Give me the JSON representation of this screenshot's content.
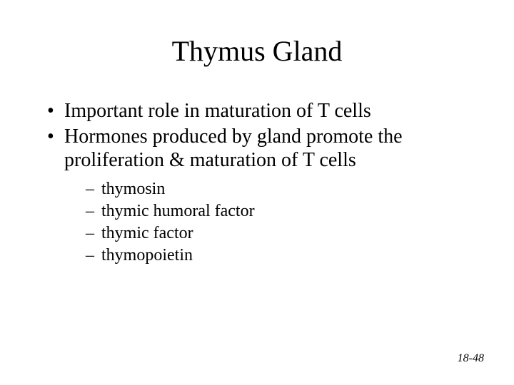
{
  "title": "Thymus Gland",
  "bullets": [
    "Important role in maturation of T cells",
    "Hormones produced by gland promote the proliferation & maturation of T cells"
  ],
  "subBullets": [
    "thymosin",
    "thymic humoral factor",
    "thymic factor",
    "thymopoietin"
  ],
  "pageNumber": "18-48",
  "colors": {
    "background": "#ffffff",
    "text": "#000000"
  },
  "typography": {
    "titleSize": 40,
    "bulletSize": 28,
    "subBulletSize": 24,
    "pageNumSize": 16,
    "fontFamily": "Times New Roman"
  }
}
